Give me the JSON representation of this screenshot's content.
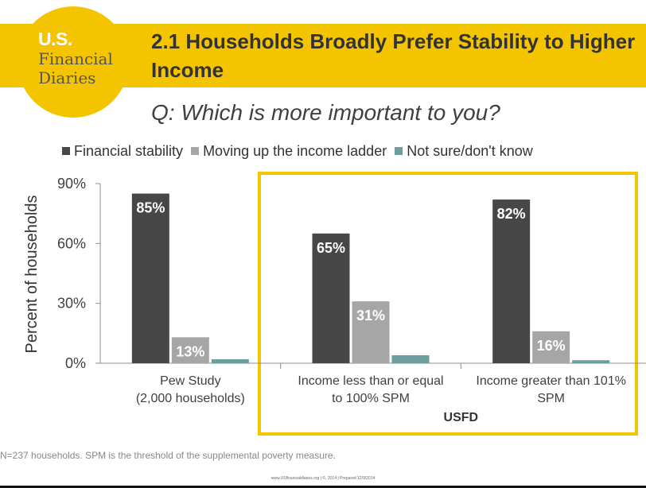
{
  "logo": {
    "line1": "U.S.",
    "line2": "Financial",
    "line3": "Diaries"
  },
  "title": "2.1 Households Broadly Prefer Stability to Higher Income",
  "subtitle": "Q: Which is more important to you?",
  "footnote": "N=237 households. SPM is the threshold of the supplemental poverty measure.",
  "footer": "www.USfinancialdiaries.org | ©, 2014 | Prepared 12/9/2014",
  "colors": {
    "accent": "#f5c400",
    "stability": "#474747",
    "moving_up": "#a6a6a6",
    "not_sure": "#6d9e9e"
  },
  "chart_data": {
    "type": "bar",
    "categories": [
      "Pew Study (2,000 households)",
      "Income less than or equal to 100% SPM",
      "Income greater than 101% SPM"
    ],
    "category_lines": [
      [
        "Pew Study",
        "(2,000 households)"
      ],
      [
        "Income less than or equal",
        "to 100% SPM"
      ],
      [
        "Income greater than 101%",
        "SPM"
      ]
    ],
    "group_label": "USFD",
    "series": [
      {
        "name": "Financial stability",
        "values": [
          85,
          65,
          82
        ],
        "labels": [
          "85%",
          "65%",
          "82%"
        ]
      },
      {
        "name": "Moving up the income ladder",
        "values": [
          13,
          31,
          16
        ],
        "labels": [
          "13%",
          "31%",
          "16%"
        ]
      },
      {
        "name": "Not sure/don't know",
        "values": [
          2,
          4,
          1.5
        ],
        "labels": [
          "",
          "",
          ""
        ]
      }
    ],
    "ylabel": "Percent of households",
    "yticks": [
      "0%",
      "30%",
      "60%",
      "90%"
    ],
    "ytick_values": [
      0,
      30,
      60,
      90
    ],
    "ylim": [
      0,
      90
    ],
    "legend_position": "top",
    "grid": false
  }
}
